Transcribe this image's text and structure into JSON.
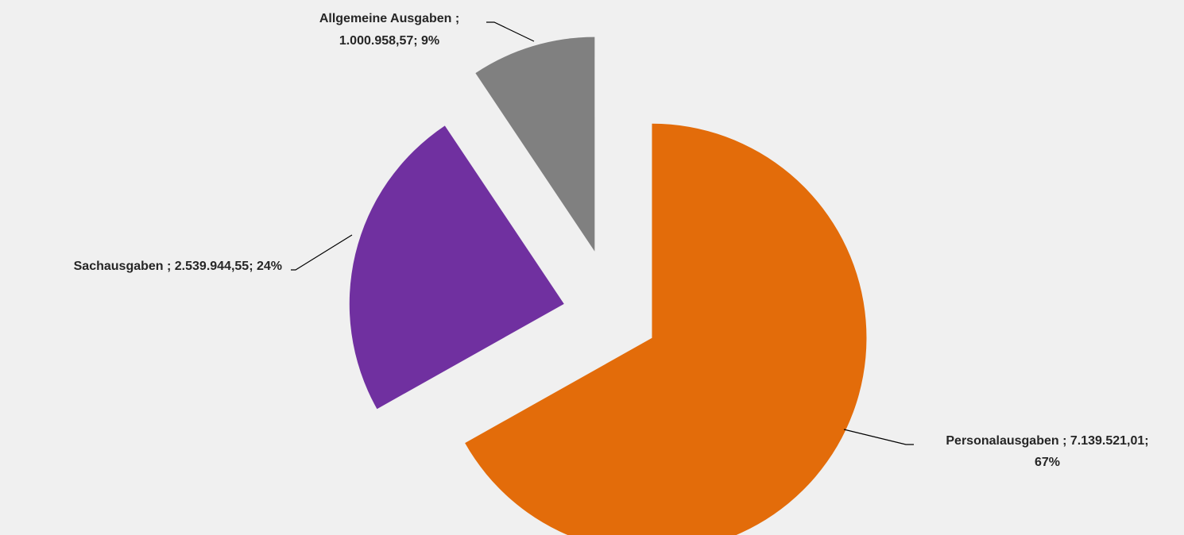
{
  "chart_data": {
    "type": "pie",
    "exploded": true,
    "start_angle": "12 o'clock",
    "direction": "clockwise",
    "grid": false,
    "legend": "none",
    "slices": [
      {
        "category": "Personalausgaben",
        "value": 7139521.01,
        "percent": 67,
        "color": "#e36c0a",
        "label_line1": "Personalausgaben ; 7.139.521,01;",
        "label_line2": "67%"
      },
      {
        "category": "Sachausgaben",
        "value": 2539944.55,
        "percent": 24,
        "color": "#7030a0",
        "label_line1": "Sachausgaben ; 2.539.944,55; 24%",
        "label_line2": ""
      },
      {
        "category": "Allgemeine Ausgaben",
        "value": 1000958.57,
        "percent": 9,
        "color": "#808080",
        "label_line1": "Allgemeine Ausgaben ;",
        "label_line2": "1.000.958,57; 9%"
      }
    ]
  }
}
